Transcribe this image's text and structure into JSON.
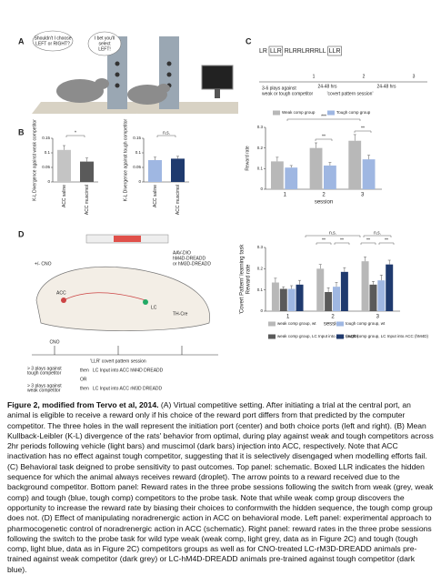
{
  "panel_letters": [
    "A",
    "B",
    "C",
    "D"
  ],
  "panel_a": {
    "labels": [
      "Shouldn't I choose",
      "LEFT or RIGHT?",
      "I bet you'll",
      "select",
      "LEFT!"
    ]
  },
  "panel_c_schematic": {
    "sequence": [
      "LR",
      "LLR",
      "RLRRLRRRLL",
      "LLR"
    ],
    "labels": [
      "3-6 plays against",
      "weak or tough competitor",
      "24-48 hrs",
      "'covert pattern session'",
      "24-48 hrs",
      "1",
      "2",
      "3"
    ]
  },
  "panel_d_schematic": {
    "labels": [
      "CNO",
      "+/- CNO",
      "ACC",
      "LC",
      "TH-Cre",
      "AAV-DIO",
      "hM4D-DREADD",
      "or hM3D-DREADD",
      "'LLR' covert pattern session",
      "> 3 plays against",
      "tough competitor",
      "then",
      "LC Input into ACC hM4D DREADD",
      "OR",
      "> 3 plays against",
      "weak competitor",
      "then",
      "LC Input into ACC rM3D DREADD"
    ]
  },
  "chart_data": [
    {
      "type": "bar",
      "ylabel": "K-L Divergence against weak competitor",
      "categories": [
        "ACC saline",
        "ACC muscimol"
      ],
      "values": [
        0.11,
        0.07
      ],
      "errors": [
        0.015,
        0.012
      ],
      "colors": [
        "#c4c4c4",
        "#5a5a5a"
      ],
      "ylim": [
        0,
        0.15
      ],
      "yticks": [
        0,
        0.05,
        0.1,
        0.15
      ],
      "annotations": [
        "*"
      ]
    },
    {
      "type": "bar",
      "ylabel": "K-L Divergence against tough competitor",
      "categories": [
        "ACC saline",
        "ACC muscimol"
      ],
      "values": [
        0.075,
        0.08
      ],
      "errors": [
        0.01,
        0.008
      ],
      "colors": [
        "#9fb7e2",
        "#1f3a6e"
      ],
      "ylim": [
        0,
        0.15
      ],
      "yticks": [
        0,
        0.05,
        0.1,
        0.15
      ],
      "annotations": [
        "n.s."
      ]
    },
    {
      "type": "bar",
      "ylabel": "Reward rate",
      "xlabel": "session",
      "categories": [
        "1",
        "2",
        "3"
      ],
      "series": [
        {
          "name": "Weak comp group",
          "color": "#b8b8b8",
          "values": [
            0.135,
            0.2,
            0.235
          ],
          "errors": [
            0.02,
            0.025,
            0.03
          ]
        },
        {
          "name": "Tough comp group",
          "color": "#9fb7e2",
          "values": [
            0.105,
            0.115,
            0.145
          ],
          "errors": [
            0.01,
            0.015,
            0.02
          ]
        }
      ],
      "ylim": [
        0,
        0.3
      ],
      "yticks": [
        0,
        0.1,
        0.2,
        0.3
      ],
      "annotations": [
        "***",
        "**",
        "**"
      ]
    },
    {
      "type": "bar",
      "ylabel": [
        "'Covert Pattern' learning task",
        "Reward rate"
      ],
      "xlabel": "session",
      "categories": [
        "1",
        "2",
        "3"
      ],
      "series": [
        {
          "name": "weak comp group, wt",
          "color": "#b8b8b8",
          "values": [
            0.135,
            0.2,
            0.235
          ],
          "errors": [
            0.02,
            0.02,
            0.02
          ]
        },
        {
          "name": "weak comp group, LC Input into ACC (rM3D)",
          "color": "#5a5a5a",
          "values": [
            0.105,
            0.09,
            0.125
          ],
          "errors": [
            0.01,
            0.02,
            0.015
          ]
        },
        {
          "name": "tough comp group, wt",
          "color": "#9fb7e2",
          "values": [
            0.105,
            0.115,
            0.145
          ],
          "errors": [
            0.015,
            0.02,
            0.025
          ]
        },
        {
          "name": "tough comp group, LC Input into ACC (hM4D)",
          "color": "#1f3a6e",
          "values": [
            0.125,
            0.185,
            0.22
          ],
          "errors": [
            0.02,
            0.02,
            0.02
          ]
        }
      ],
      "ylim": [
        0,
        0.3
      ],
      "yticks": [
        0,
        0.1,
        0.2,
        0.3
      ],
      "annotations": [
        "n.s.",
        "n.s.",
        "**",
        "**",
        "**",
        "**"
      ]
    }
  ],
  "caption": {
    "title": "Figure 2, modified from Tervo et al, 2014.",
    "body": " (A) Virtual competitive setting. After initiating a trial at the central port, an animal is eligible to receive a reward only if his choice of the reward port differs from that predicted by the computer competitor. The three holes in the wall represent the initiation port (center) and both choice ports (left and right). (B) Mean Kullback-Leibler (K-L) divergence of the rats' behavior from optimal, during play against weak and tough competitors across 2hr periods following vehicle (light bars) and muscimol (dark bars) injection into ACC, respectively. Note that ACC inactivation has no effect against tough competitor, suggesting that it is selectively disengaged when modelling efforts fail. (C) Behavioral task deigned to probe sensitivity to past outcomes. Top panel: schematic. Boxed LLR indicates the hidden sequence for which the animal always receives reward (droplet). The arrow points to a reward received due to the background competitor. Bottom panel: Reward rates in the three probe sessions following the switch from weak (grey, weak comp) and tough (blue, tough comp) competitors to the probe task. Note that while weak comp group discovers the opportunity to increase the reward rate by biasing their choices to conformwith the hidden sequence, the tough comp group does not. (D) Effect of manipulating noradrenergic action in ACC on behavioral mode.  Left panel: experimental approach to pharmocogenetic control of noradrenergic action in ACC (schematic). Right panel: reward rates in the three probe sessions following the switch to the probe task for wild type weak (weak comp, light grey, data as in Figure 2C) and tough (tough comp, light blue, data as in Figure 2C) competitors groups as well as for CNO-treated LC-rM3D-DREADD animals pre-trained against weak competitor (dark grey) or LC-hM4D-DREADD animals pre-trained against tough competitor (dark blue)."
  }
}
